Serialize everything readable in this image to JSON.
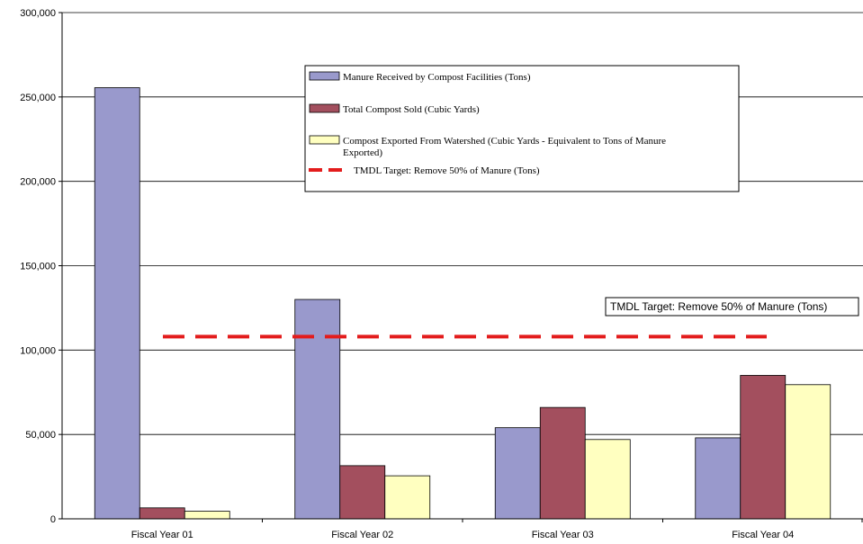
{
  "chart_data": {
    "type": "bar",
    "title": "",
    "xlabel": "",
    "ylabel": "",
    "ylim": [
      0,
      300000
    ],
    "yticks": [
      0,
      50000,
      100000,
      150000,
      200000,
      250000,
      300000
    ],
    "ytick_labels": [
      "0",
      "50,000",
      "100,000",
      "150,000",
      "200,000",
      "250,000",
      "300,000"
    ],
    "categories": [
      "Fiscal Year 01",
      "Fiscal Year 02",
      "Fiscal Year 03",
      "Fiscal Year 04"
    ],
    "grid": true,
    "legend_position": "top-center",
    "series": [
      {
        "name": "Manure Received by Compost Facilities (Tons)",
        "color": "#9999cc",
        "values": [
          255500,
          130000,
          54000,
          48000
        ]
      },
      {
        "name": "Total Compost Sold (Cubic Yards)",
        "color": "#a34f5e",
        "values": [
          6500,
          31500,
          66000,
          85000
        ]
      },
      {
        "name": "Compost Exported From Watershed (Cubic Yards - Equivalent to Tons of Manure Exported)",
        "color": "#ffffc0",
        "values": [
          4500,
          25500,
          47000,
          79500
        ]
      }
    ],
    "target_line": {
      "name": "TMDL Target: Remove 50% of Manure (Tons)",
      "value": 108000,
      "color": "#e31c1c"
    },
    "annotation": "TMDL Target: Remove 50% of Manure (Tons)"
  }
}
